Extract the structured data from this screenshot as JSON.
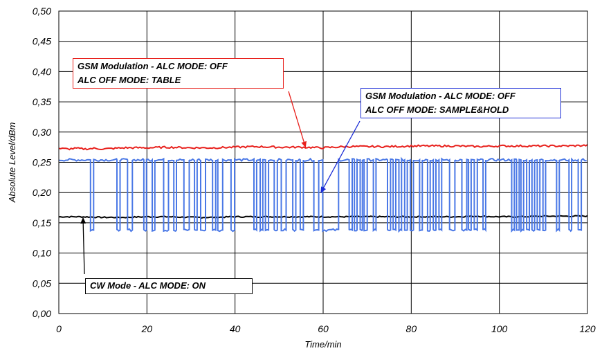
{
  "chart_data": {
    "type": "line",
    "xlabel": "Time/min",
    "ylabel": "Absolute Level/dBm",
    "xlim": [
      0,
      120
    ],
    "ylim": [
      0.0,
      0.5
    ],
    "x_ticks": [
      0,
      20,
      40,
      60,
      80,
      100,
      120
    ],
    "y_ticks": [
      "0,00",
      "0,05",
      "0,10",
      "0,15",
      "0,20",
      "0,25",
      "0,30",
      "0,35",
      "0,40",
      "0,45",
      "0,50"
    ],
    "grid": true,
    "series": [
      {
        "key": "table",
        "color": "#e8201c",
        "x": [
          0,
          2,
          4,
          6,
          8,
          10,
          15,
          20,
          25,
          30,
          35,
          40,
          45,
          50,
          55,
          60,
          65,
          70,
          75,
          80,
          85,
          90,
          95,
          100,
          105,
          110,
          115,
          120
        ],
        "values": [
          0.273,
          0.272,
          0.273,
          0.272,
          0.273,
          0.272,
          0.274,
          0.274,
          0.275,
          0.274,
          0.274,
          0.275,
          0.276,
          0.275,
          0.275,
          0.274,
          0.276,
          0.276,
          0.276,
          0.277,
          0.277,
          0.277,
          0.276,
          0.277,
          0.277,
          0.277,
          0.277,
          0.278
        ]
      },
      {
        "key": "sample_hold",
        "color": "#4a78e6",
        "high": 0.254,
        "low": 0.138,
        "dips": [
          [
            7.2,
            7.9
          ],
          [
            13.2,
            13.9
          ],
          [
            15.6,
            16.7
          ],
          [
            19.3,
            19.9
          ],
          [
            21.2,
            21.8
          ],
          [
            23.8,
            24.9
          ],
          [
            26.1,
            26.7
          ],
          [
            28.4,
            29.6
          ],
          [
            30.8,
            31.4
          ],
          [
            32.2,
            33.3
          ],
          [
            34.9,
            35.6
          ],
          [
            36.1,
            37.2
          ],
          [
            39.1,
            39.9
          ],
          [
            44.3,
            44.9
          ],
          [
            45.7,
            46.3
          ],
          [
            46.9,
            47.6
          ],
          [
            48.9,
            49.6
          ],
          [
            50.5,
            51.6
          ],
          [
            53.1,
            53.8
          ],
          [
            54.8,
            55.5
          ],
          [
            57.9,
            59.0
          ],
          [
            59.9,
            63.5
          ],
          [
            65.9,
            66.6
          ],
          [
            67.1,
            67.7
          ],
          [
            68.4,
            68.9
          ],
          [
            69.3,
            70.0
          ],
          [
            71.4,
            72.0
          ],
          [
            74.6,
            75.3
          ],
          [
            75.9,
            76.5
          ],
          [
            77.2,
            77.8
          ],
          [
            78.5,
            79.1
          ],
          [
            79.8,
            80.5
          ],
          [
            81.9,
            82.5
          ],
          [
            83.7,
            84.3
          ],
          [
            85.0,
            85.6
          ],
          [
            86.3,
            86.9
          ],
          [
            88.7,
            89.9
          ],
          [
            91.5,
            92.6
          ],
          [
            93.0,
            93.6
          ],
          [
            94.3,
            95.0
          ],
          [
            96.3,
            96.9
          ],
          [
            102.8,
            103.4
          ],
          [
            103.9,
            104.5
          ],
          [
            104.9,
            105.5
          ],
          [
            106.2,
            106.8
          ],
          [
            107.4,
            108.0
          ],
          [
            108.6,
            109.2
          ],
          [
            109.9,
            110.5
          ],
          [
            113.0,
            113.6
          ],
          [
            115.8,
            116.4
          ],
          [
            117.9,
            118.6
          ]
        ]
      },
      {
        "key": "cw",
        "color": "#000000",
        "x": [
          0,
          5,
          10,
          15,
          20,
          25,
          30,
          35,
          40,
          45,
          50,
          55,
          60,
          65,
          70,
          75,
          80,
          85,
          90,
          95,
          100,
          105,
          110,
          115,
          120
        ],
        "values": [
          0.16,
          0.16,
          0.159,
          0.159,
          0.16,
          0.16,
          0.159,
          0.159,
          0.16,
          0.16,
          0.16,
          0.16,
          0.16,
          0.16,
          0.16,
          0.16,
          0.16,
          0.16,
          0.16,
          0.161,
          0.16,
          0.16,
          0.161,
          0.161,
          0.161
        ]
      }
    ],
    "annotations": [
      {
        "key": "red",
        "lines": [
          "GSM Modulation - ALC MODE: OFF",
          "ALC OFF MODE: TABLE"
        ],
        "arrow_to": [
          56,
          0.275
        ]
      },
      {
        "key": "blue",
        "lines": [
          "GSM Modulation - ALC MODE: OFF",
          "ALC OFF MODE: SAMPLE&HOLD"
        ],
        "arrow_to": [
          59.5,
          0.2
        ]
      },
      {
        "key": "black",
        "lines": [
          "CW Mode - ALC MODE: ON"
        ],
        "arrow_to": [
          5.5,
          0.158
        ]
      }
    ]
  }
}
